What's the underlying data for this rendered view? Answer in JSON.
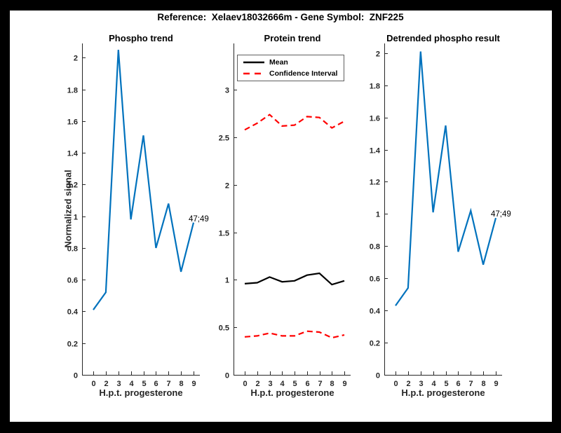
{
  "figure": {
    "title": "Reference:  Xelaev18032666m - Gene Symbol:  ZNF225",
    "frame_color": "#000000",
    "canvas_color": "#ffffff",
    "axis_color": "#262626"
  },
  "chart_data": [
    {
      "id": "phospho-trend",
      "type": "line",
      "title": "Phospho trend",
      "xlabel": "H.p.t. progesterone",
      "ylabel": "Normalized signal",
      "x_values": [
        0,
        2,
        3,
        4,
        5,
        6,
        7,
        8,
        9
      ],
      "x_ticklabels": [
        "0",
        "2",
        "3",
        "4",
        "5",
        "6",
        "7",
        "8",
        "9"
      ],
      "yticks": {
        "values": [
          0,
          0.2,
          0.4,
          0.6,
          0.8,
          1,
          1.2,
          1.4,
          1.6,
          1.8,
          2
        ],
        "labels": [
          "0",
          "0.2",
          "0.4",
          "0.6",
          "0.8",
          "1",
          "1.2",
          "1.4",
          "1.6",
          "1.8",
          "2"
        ]
      },
      "ylim": [
        0,
        2.09
      ],
      "grid": false,
      "series": [
        {
          "name": "phospho signal",
          "color": "#0072bd",
          "dash": false,
          "values": [
            0.41,
            0.52,
            2.05,
            0.98,
            1.51,
            0.8,
            1.08,
            0.65,
            0.96
          ]
        }
      ],
      "annotation": {
        "text": "47;49"
      }
    },
    {
      "id": "protein-trend",
      "type": "line",
      "title": "Protein trend",
      "xlabel": "H.p.t. progesterone",
      "ylabel": "",
      "x_values": [
        0,
        2,
        3,
        4,
        5,
        6,
        7,
        8,
        9
      ],
      "x_ticklabels": [
        "0",
        "2",
        "3",
        "4",
        "5",
        "6",
        "7",
        "8",
        "9"
      ],
      "yticks": {
        "values": [
          0,
          0.5,
          1,
          1.5,
          2,
          2.5,
          3
        ],
        "labels": [
          "0",
          "0.5",
          "1",
          "1.5",
          "2",
          "2.5",
          "3"
        ]
      },
      "ylim": [
        0,
        3.49
      ],
      "grid": false,
      "legend": {
        "position": "top-left",
        "items": [
          {
            "label": "Mean",
            "color": "#000000",
            "dash": false
          },
          {
            "label": "Confidence Interval",
            "color": "#ff0000",
            "dash": true
          }
        ]
      },
      "series": [
        {
          "name": "Mean",
          "color": "#000000",
          "dash": false,
          "values": [
            0.96,
            0.97,
            1.03,
            0.98,
            0.99,
            1.05,
            1.07,
            0.95,
            0.99
          ]
        },
        {
          "name": "Confidence Interval upper",
          "color": "#ff0000",
          "dash": true,
          "values": [
            2.58,
            2.65,
            2.74,
            2.62,
            2.63,
            2.72,
            2.71,
            2.6,
            2.67
          ]
        },
        {
          "name": "Confidence Interval lower",
          "color": "#ff0000",
          "dash": true,
          "values": [
            0.4,
            0.41,
            0.44,
            0.41,
            0.41,
            0.46,
            0.45,
            0.39,
            0.42
          ]
        }
      ]
    },
    {
      "id": "detrended-phospho-result",
      "type": "line",
      "title": "Detrended phospho result",
      "xlabel": "H.p.t. progesterone",
      "ylabel": "",
      "x_values": [
        0,
        2,
        3,
        4,
        5,
        6,
        7,
        8,
        9
      ],
      "x_ticklabels": [
        "0",
        "2",
        "3",
        "4",
        "5",
        "6",
        "7",
        "8",
        "9"
      ],
      "yticks": {
        "values": [
          0,
          0.2,
          0.4,
          0.6,
          0.8,
          1,
          1.2,
          1.4,
          1.6,
          1.8,
          2
        ],
        "labels": [
          "0",
          "0.2",
          "0.4",
          "0.6",
          "0.8",
          "1",
          "1.2",
          "1.4",
          "1.6",
          "1.8",
          "2"
        ]
      },
      "ylim": [
        0,
        2.06
      ],
      "grid": false,
      "series": [
        {
          "name": "detrended phospho signal",
          "color": "#0072bd",
          "dash": false,
          "values": [
            0.43,
            0.54,
            2.01,
            1.01,
            1.55,
            0.765,
            1.02,
            0.685,
            0.975
          ]
        }
      ],
      "annotation": {
        "text": "47;49"
      }
    }
  ]
}
